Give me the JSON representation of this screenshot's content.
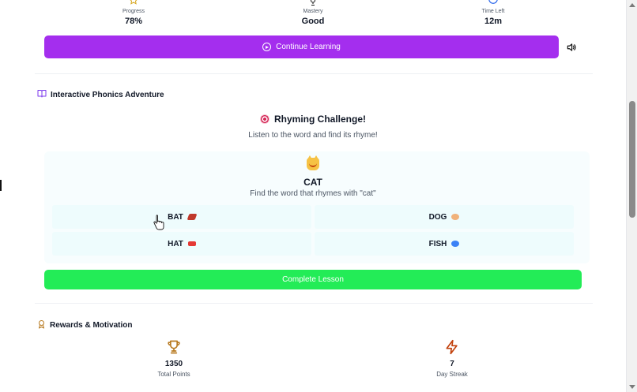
{
  "stats": [
    {
      "label": "Progress",
      "value": "78%",
      "icon": "star-icon"
    },
    {
      "label": "Mastery",
      "value": "Good",
      "icon": "trophy-icon"
    },
    {
      "label": "Time Left",
      "value": "12m",
      "icon": "clock-icon"
    }
  ],
  "actions": {
    "continue_label": "Continue Learning",
    "complete_label": "Complete Lesson"
  },
  "colors": {
    "continue_button": "#a42eee",
    "complete_button": "#23ec57",
    "reward_icon": "#b7791f"
  },
  "phonics": {
    "section_title": "Interactive Phonics Adventure",
    "challenge_title": "Rhyming Challenge!",
    "challenge_subtitle": "Listen to the word and find its rhyme!",
    "word": "CAT",
    "word_hint": "Find the word that rhymes with \"cat\"",
    "options": [
      {
        "label": "BAT",
        "icon": "bat-emoji"
      },
      {
        "label": "DOG",
        "icon": "dog-emoji"
      },
      {
        "label": "HAT",
        "icon": "hat-emoji"
      },
      {
        "label": "FISH",
        "icon": "fish-emoji"
      }
    ]
  },
  "rewards": {
    "section_title": "Rewards & Motivation",
    "items": [
      {
        "value": "1350",
        "label": "Total Points",
        "icon": "trophy-icon"
      },
      {
        "value": "7",
        "label": "Day Streak",
        "icon": "lightning-icon"
      }
    ]
  }
}
